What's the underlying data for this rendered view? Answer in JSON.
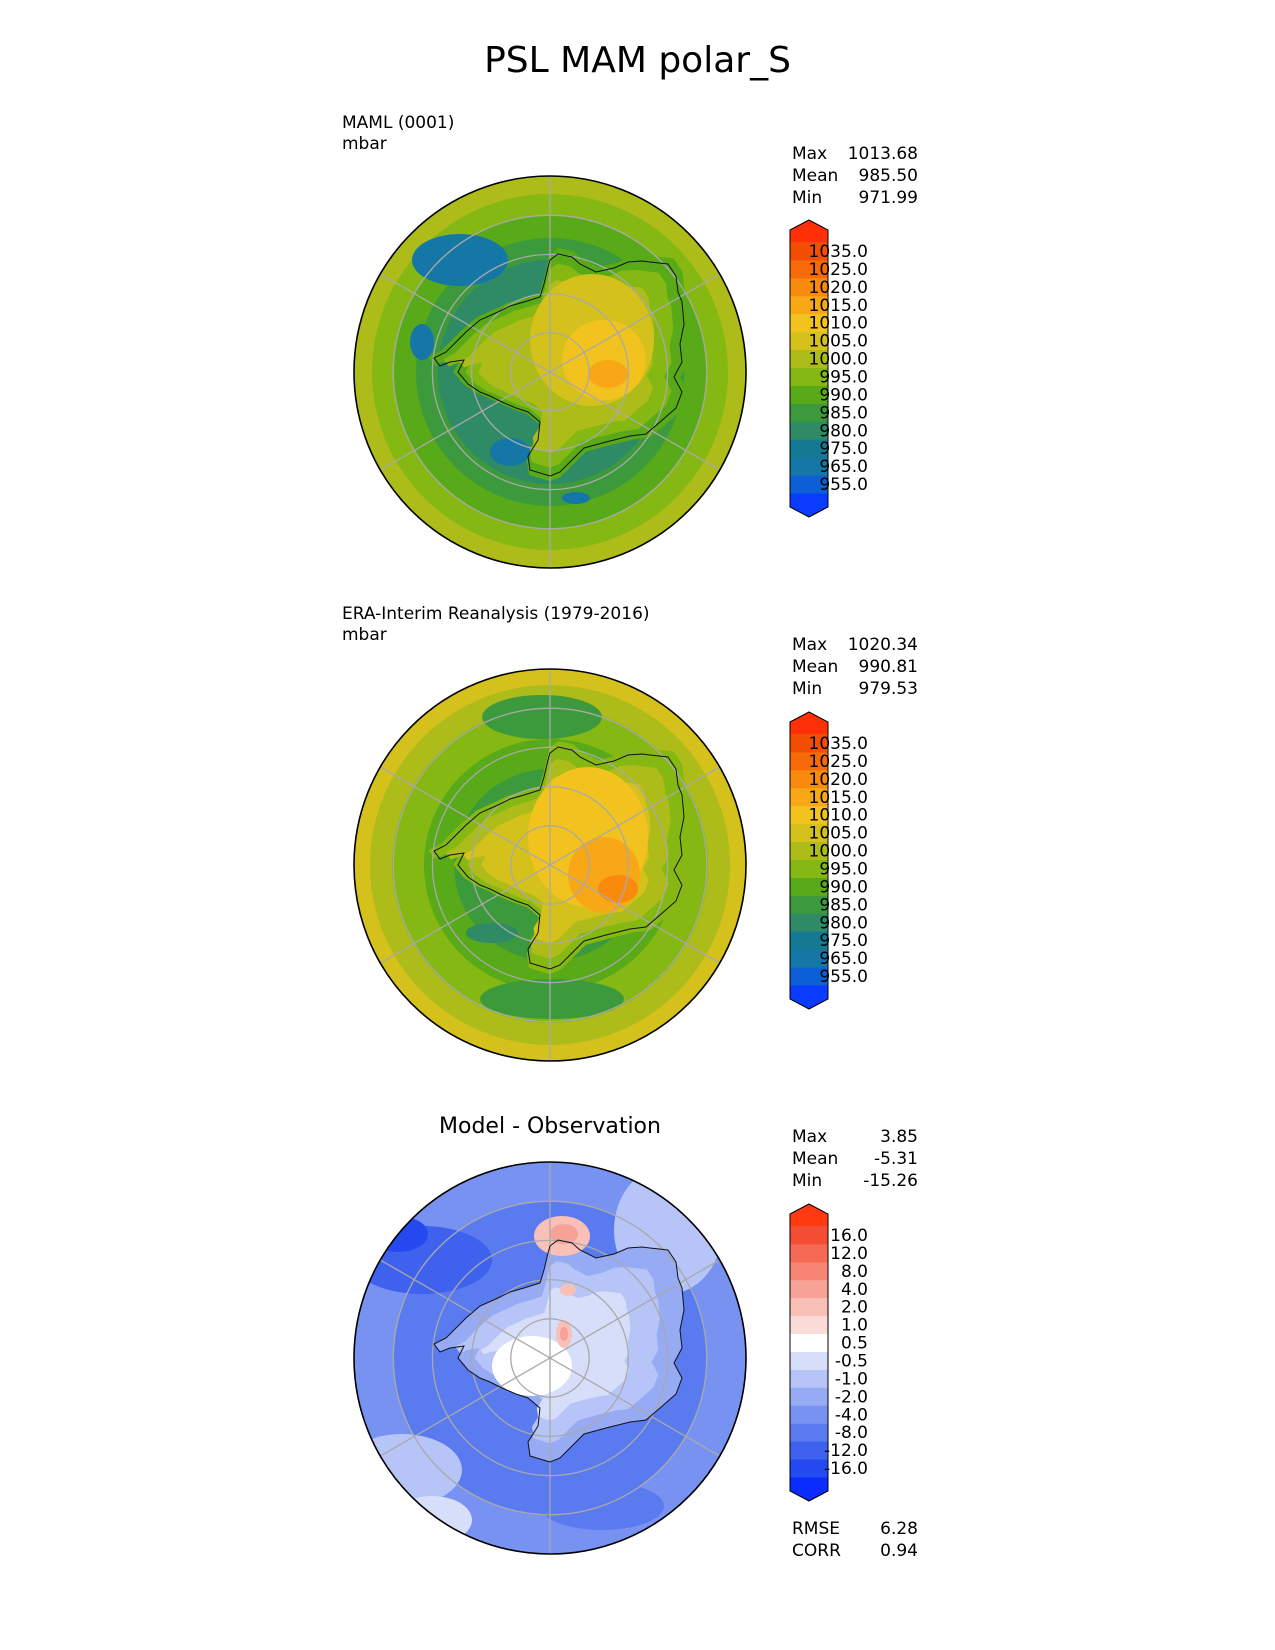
{
  "title": "PSL MAM polar_S",
  "panels": [
    {
      "name": "model",
      "title": "MAML (0001)",
      "units": "mbar",
      "stats": {
        "max_label": "Max",
        "max": "1013.68",
        "mean_label": "Mean",
        "mean": "985.50",
        "min_label": "Min",
        "min": "971.99"
      }
    },
    {
      "name": "obs",
      "title": "ERA-Interim Reanalysis (1979-2016)",
      "units": "mbar",
      "stats": {
        "max_label": "Max",
        "max": "1020.34",
        "mean_label": "Mean",
        "mean": "990.81",
        "min_label": "Min",
        "min": "979.53"
      }
    },
    {
      "name": "diff",
      "title": "Model - Observation",
      "stats": {
        "max_label": "Max",
        "max": "3.85",
        "mean_label": "Mean",
        "mean": "-5.31",
        "min_label": "Min",
        "min": "-15.26"
      },
      "metrics": {
        "rmse_label": "RMSE",
        "rmse": "6.28",
        "corr_label": "CORR",
        "corr": "0.94"
      }
    }
  ],
  "chart_data": [
    {
      "type": "heatmap",
      "projection": "south-polar-stereographic",
      "title": "MAML (0001)",
      "units": "mbar",
      "max": 1013.68,
      "mean": 985.5,
      "min": 971.99,
      "colorbar": {
        "levels": [
          "955.0",
          "965.0",
          "975.0",
          "980.0",
          "985.0",
          "990.0",
          "995.0",
          "1000.0",
          "1005.0",
          "1010.0",
          "1015.0",
          "1020.0",
          "1025.0",
          "1035.0"
        ],
        "colors": [
          "#0a3cff",
          "#0d5fd6",
          "#1577a5",
          "#147a93",
          "#2f8a66",
          "#3d9a3c",
          "#58aa18",
          "#85b812",
          "#aebc1a",
          "#d4c11c",
          "#f2c31e",
          "#f8a817",
          "#f98a0e",
          "#f86a08",
          "#f44d04",
          "#ff3008"
        ]
      }
    },
    {
      "type": "heatmap",
      "projection": "south-polar-stereographic",
      "title": "ERA-Interim Reanalysis (1979-2016)",
      "units": "mbar",
      "max": 1020.34,
      "mean": 990.81,
      "min": 979.53,
      "colorbar": {
        "levels": [
          "955.0",
          "965.0",
          "975.0",
          "980.0",
          "985.0",
          "990.0",
          "995.0",
          "1000.0",
          "1005.0",
          "1010.0",
          "1015.0",
          "1020.0",
          "1025.0",
          "1035.0"
        ],
        "colors": [
          "#0a3cff",
          "#0d5fd6",
          "#1577a5",
          "#147a93",
          "#2f8a66",
          "#3d9a3c",
          "#58aa18",
          "#85b812",
          "#aebc1a",
          "#d4c11c",
          "#f2c31e",
          "#f8a817",
          "#f98a0e",
          "#f86a08",
          "#f44d04",
          "#ff3008"
        ]
      }
    },
    {
      "type": "heatmap",
      "projection": "south-polar-stereographic",
      "title": "Model - Observation",
      "max": 3.85,
      "mean": -5.31,
      "min": -15.26,
      "rmse": 6.28,
      "corr": 0.94,
      "colorbar": {
        "levels": [
          "-16.0",
          "-12.0",
          "-8.0",
          "-4.0",
          "-2.0",
          "-1.0",
          "-0.5",
          "0.5",
          "1.0",
          "2.0",
          "4.0",
          "8.0",
          "12.0",
          "16.0"
        ],
        "colors": [
          "#0a2cff",
          "#2449f0",
          "#3e62ee",
          "#5a7af0",
          "#7892f2",
          "#97aaf4",
          "#b6c4f8",
          "#d6def9",
          "#ffffff",
          "#fbdcd8",
          "#f9c0b8",
          "#f7a296",
          "#f68575",
          "#f66a55",
          "#f34d34",
          "#ff3a10"
        ]
      }
    }
  ]
}
